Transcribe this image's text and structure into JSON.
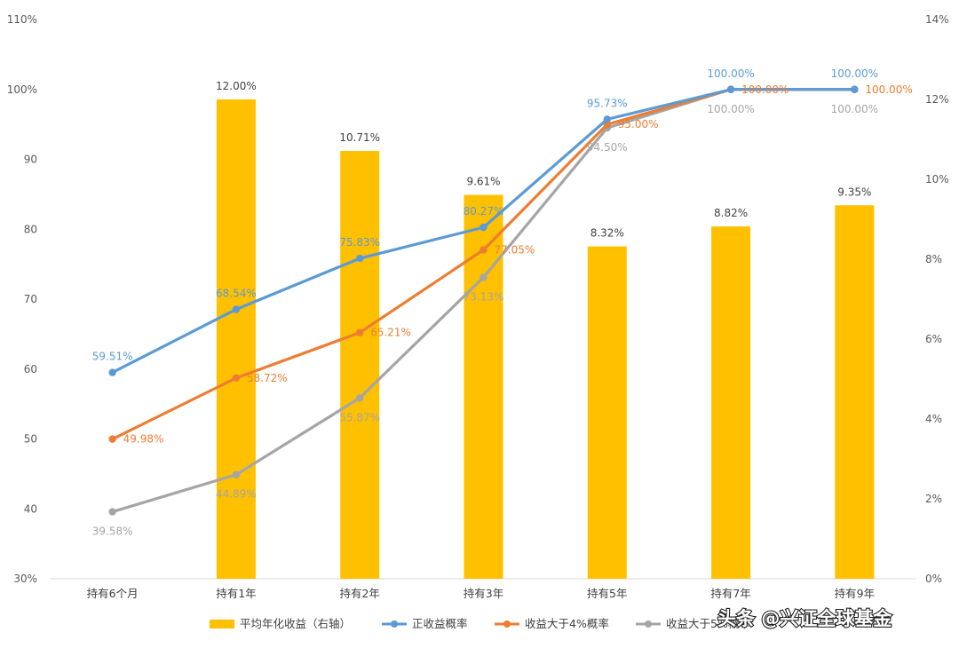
{
  "chart_data": {
    "type": "bar+line",
    "categories": [
      "持有6个月",
      "持有1年",
      "持有2年",
      "持有3年",
      "持有5年",
      "持有7年",
      "持有9年"
    ],
    "left_axis": {
      "ylim": [
        30,
        110
      ],
      "step": 10,
      "tick_labels": [
        "30%",
        "40",
        "50",
        "60",
        "70",
        "80",
        "90",
        "100%",
        "110%"
      ]
    },
    "right_axis": {
      "ylim": [
        0,
        14
      ],
      "step": 2,
      "tick_labels": [
        "0%",
        "2%",
        "4%",
        "6%",
        "8%",
        "10%",
        "12%",
        "14%"
      ]
    },
    "bars": {
      "name": "平均年化收益（右轴）",
      "color": "#FFC000",
      "values": [
        null,
        12.0,
        10.71,
        9.61,
        8.32,
        8.82,
        9.35
      ],
      "labels": [
        "",
        "12.00%",
        "10.71%",
        "9.61%",
        "8.32%",
        "8.82%",
        "9.35%"
      ]
    },
    "series": [
      {
        "name": "正收益概率",
        "color": "#5B9BD5",
        "values": [
          59.51,
          68.54,
          75.83,
          80.27,
          95.73,
          100.0,
          100.0
        ],
        "labels": [
          "59.51%",
          "68.54%",
          "75.83%",
          "80.27%",
          "95.73%",
          "100.00%",
          "100.00%"
        ]
      },
      {
        "name": "收益大于4%概率",
        "color": "#ED7D31",
        "values": [
          49.98,
          58.72,
          65.21,
          77.05,
          95.0,
          100.0,
          100.0
        ],
        "labels": [
          "49.98%",
          "58.72%",
          "65.21%",
          "77.05%",
          "95.00%",
          "100.00%",
          "100.00%"
        ]
      },
      {
        "name": "收益大于5%概率",
        "color": "#A5A5A5",
        "values": [
          39.58,
          44.89,
          55.87,
          73.13,
          94.5,
          100.0,
          100.0
        ],
        "labels": [
          "39.58%",
          "44.89%",
          "55.87%",
          "73.13%",
          "94.50%",
          "100.00%",
          "100.00%"
        ]
      }
    ],
    "legend_position": "bottom"
  },
  "watermark": "头条 @兴证全球基金"
}
